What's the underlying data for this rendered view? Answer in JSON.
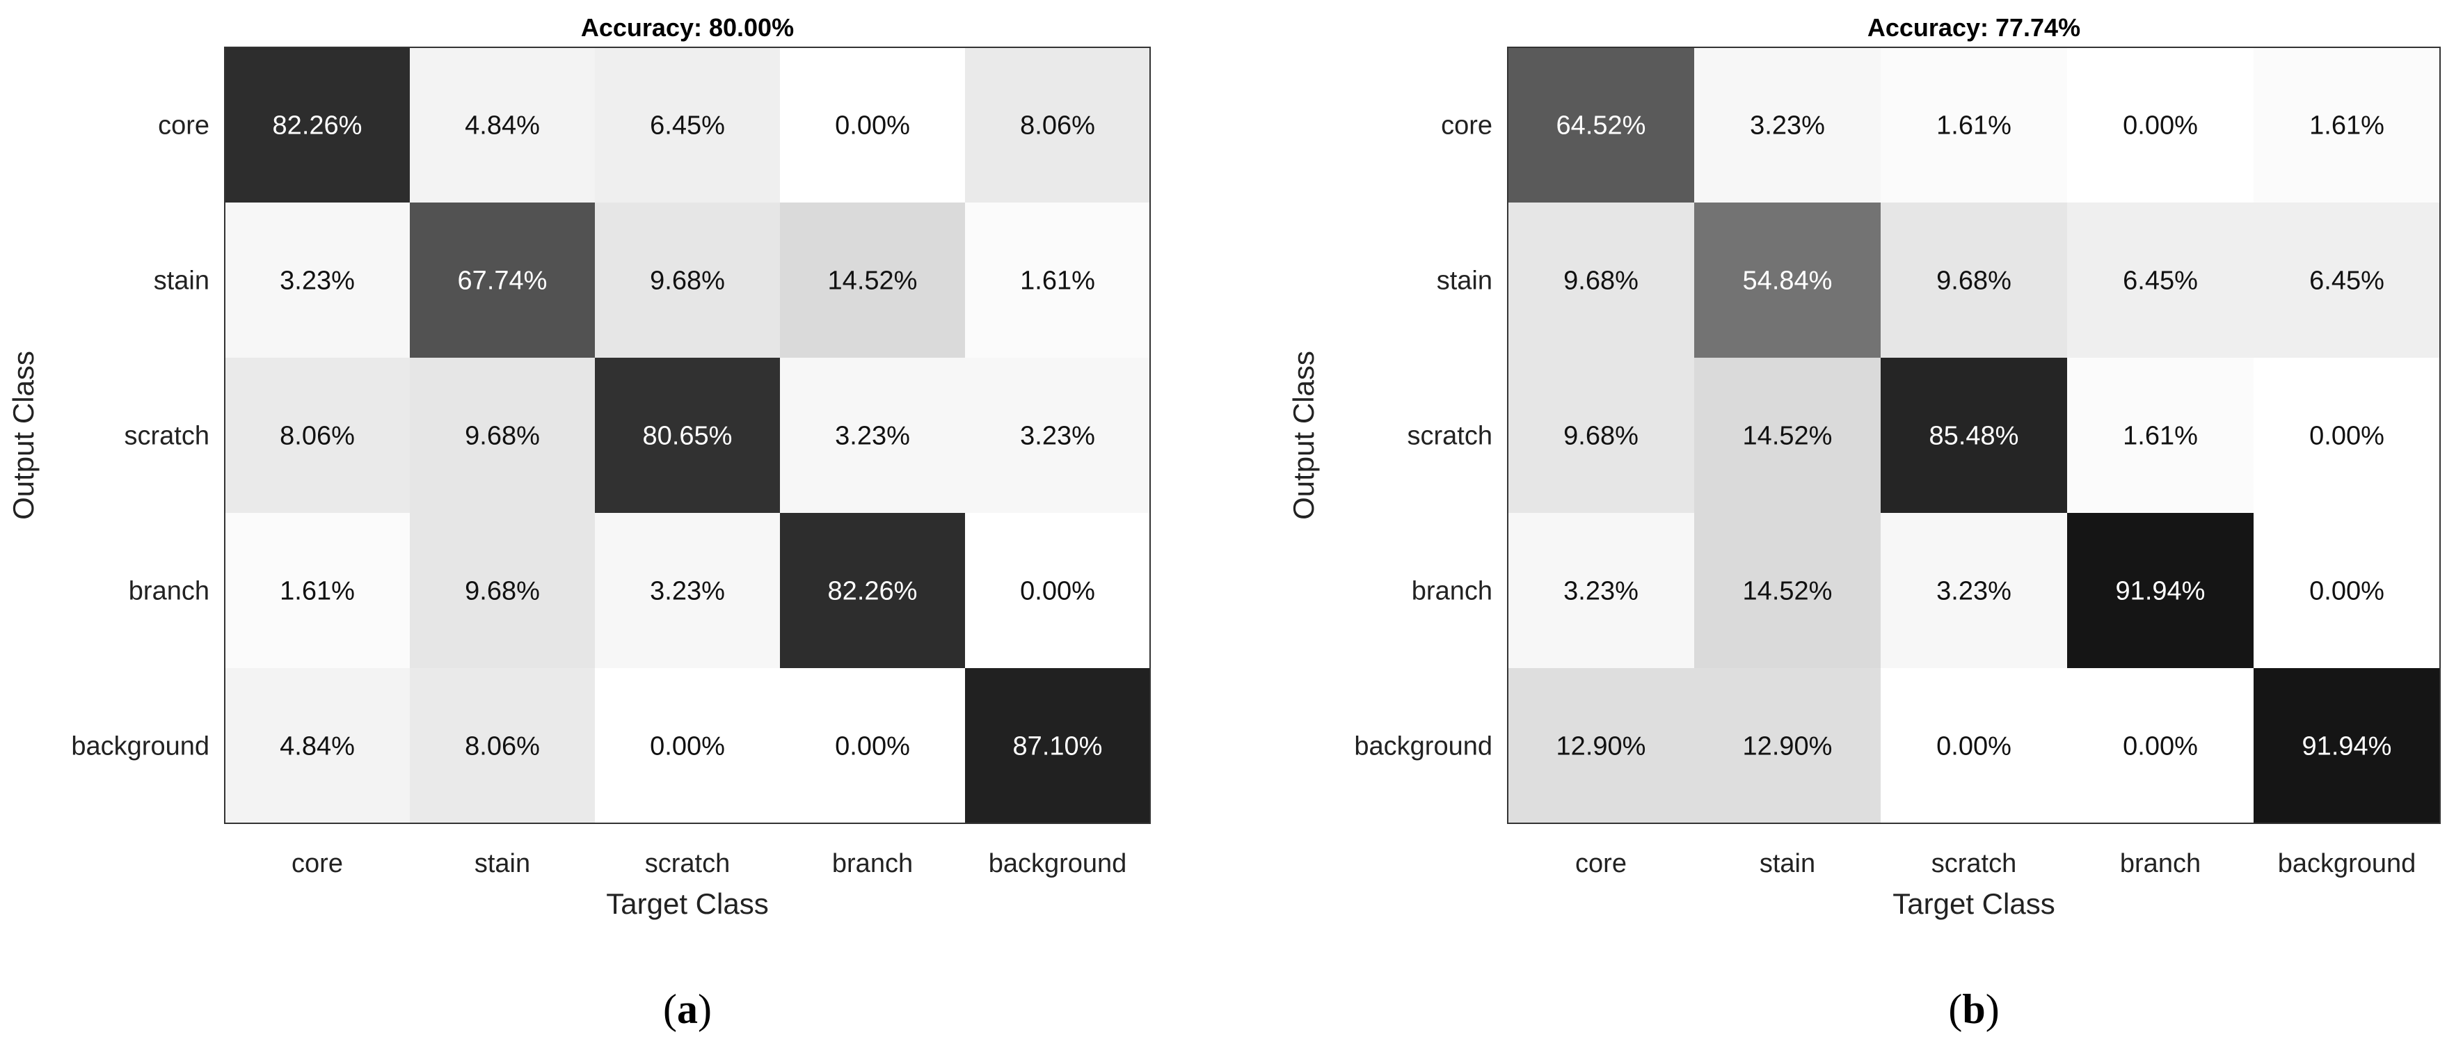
{
  "chart_data": [
    {
      "type": "heatmap",
      "title": "Accuracy: 80.00%",
      "xlabel": "Target Class",
      "ylabel": "Output Class",
      "x_categories": [
        "core",
        "stain",
        "scratch",
        "branch",
        "background"
      ],
      "y_categories": [
        "core",
        "stain",
        "scratch",
        "branch",
        "background"
      ],
      "values": [
        [
          82.26,
          4.84,
          6.45,
          0.0,
          8.06
        ],
        [
          3.23,
          67.74,
          9.68,
          14.52,
          1.61
        ],
        [
          8.06,
          9.68,
          80.65,
          3.23,
          3.23
        ],
        [
          1.61,
          9.68,
          3.23,
          82.26,
          0.0
        ],
        [
          4.84,
          8.06,
          0.0,
          0.0,
          87.1
        ]
      ],
      "labels": [
        [
          "82.26%",
          "4.84%",
          "6.45%",
          "0.00%",
          "8.06%"
        ],
        [
          "3.23%",
          "67.74%",
          "9.68%",
          "14.52%",
          "1.61%"
        ],
        [
          "8.06%",
          "9.68%",
          "80.65%",
          "3.23%",
          "3.23%"
        ],
        [
          "1.61%",
          "9.68%",
          "3.23%",
          "82.26%",
          "0.00%"
        ],
        [
          "4.84%",
          "8.06%",
          "0.00%",
          "0.00%",
          "87.10%"
        ]
      ],
      "panel_label": {
        "open": "(",
        "letter": "a",
        "close": ")"
      }
    },
    {
      "type": "heatmap",
      "title": "Accuracy: 77.74%",
      "xlabel": "Target Class",
      "ylabel": "Output Class",
      "x_categories": [
        "core",
        "stain",
        "scratch",
        "branch",
        "background"
      ],
      "y_categories": [
        "core",
        "stain",
        "scratch",
        "branch",
        "background"
      ],
      "values": [
        [
          64.52,
          3.23,
          1.61,
          0.0,
          1.61
        ],
        [
          9.68,
          54.84,
          9.68,
          6.45,
          6.45
        ],
        [
          9.68,
          14.52,
          85.48,
          1.61,
          0.0
        ],
        [
          3.23,
          14.52,
          3.23,
          91.94,
          0.0
        ],
        [
          12.9,
          12.9,
          0.0,
          0.0,
          91.94
        ]
      ],
      "labels": [
        [
          "64.52%",
          "3.23%",
          "1.61%",
          "0.00%",
          "1.61%"
        ],
        [
          "9.68%",
          "54.84%",
          "9.68%",
          "6.45%",
          "6.45%"
        ],
        [
          "9.68%",
          "14.52%",
          "85.48%",
          "1.61%",
          "0.00%"
        ],
        [
          "3.23%",
          "14.52%",
          "3.23%",
          "91.94%",
          "0.00%"
        ],
        [
          "12.90%",
          "12.90%",
          "0.00%",
          "0.00%",
          "91.94%"
        ]
      ],
      "panel_label": {
        "open": "(",
        "letter": "b",
        "close": ")"
      }
    }
  ]
}
